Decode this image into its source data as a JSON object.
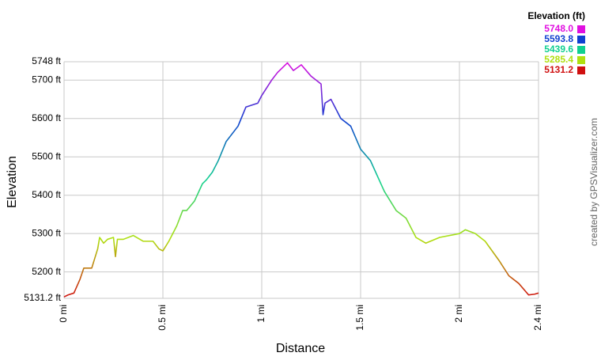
{
  "chart_data": {
    "type": "line",
    "x_label": "Distance",
    "y_label": "Elevation",
    "credit": "created by GPSVisualizer.com",
    "xlim": [
      0,
      2.4
    ],
    "xticks": [
      {
        "value": 0,
        "label": "0 mi"
      },
      {
        "value": 0.5,
        "label": "0.5 mi"
      },
      {
        "value": 1,
        "label": "1 mi"
      },
      {
        "value": 1.5,
        "label": "1.5 mi"
      },
      {
        "value": 2,
        "label": "2 mi"
      },
      {
        "value": 2.4,
        "label": "2.4 mi"
      }
    ],
    "ylim": [
      5131.2,
      5748
    ],
    "yticks": [
      {
        "value": 5131.2,
        "label": "5131.2 ft"
      },
      {
        "value": 5200,
        "label": "5200 ft"
      },
      {
        "value": 5300,
        "label": "5300 ft"
      },
      {
        "value": 5400,
        "label": "5400 ft"
      },
      {
        "value": 5500,
        "label": "5500 ft"
      },
      {
        "value": 5600,
        "label": "5600 ft"
      },
      {
        "value": 5700,
        "label": "5700 ft"
      },
      {
        "value": 5748,
        "label": "5748 ft"
      }
    ],
    "grid": true,
    "legend_position": "top-right",
    "color_scale": [
      {
        "value": 5748,
        "label": "5748.0",
        "color": "#e010e0"
      },
      {
        "value": 5593.8,
        "label": "5593.8",
        "color": "#1040d0"
      },
      {
        "value": 5439.6,
        "label": "5439.6",
        "color": "#10d090"
      },
      {
        "value": 5285.4,
        "label": "5285.4",
        "color": "#b0e010"
      },
      {
        "value": 5131.2,
        "label": "5131.2",
        "color": "#d01010"
      }
    ],
    "series": [
      {
        "name": "Elevation (ft)",
        "x": [
          0,
          0.02,
          0.05,
          0.08,
          0.1,
          0.14,
          0.17,
          0.18,
          0.2,
          0.22,
          0.25,
          0.26,
          0.27,
          0.3,
          0.35,
          0.4,
          0.45,
          0.48,
          0.5,
          0.53,
          0.57,
          0.6,
          0.62,
          0.66,
          0.7,
          0.72,
          0.75,
          0.78,
          0.82,
          0.88,
          0.92,
          0.98,
          1.0,
          1.05,
          1.08,
          1.13,
          1.16,
          1.2,
          1.25,
          1.3,
          1.31,
          1.32,
          1.35,
          1.4,
          1.45,
          1.5,
          1.55,
          1.62,
          1.68,
          1.73,
          1.78,
          1.83,
          1.9,
          2.0,
          2.03,
          2.08,
          2.13,
          2.2,
          2.25,
          2.3,
          2.35,
          2.38,
          2.4
        ],
        "values": [
          5135,
          5140,
          5145,
          5180,
          5210,
          5210,
          5260,
          5290,
          5275,
          5285,
          5290,
          5240,
          5285,
          5285,
          5295,
          5280,
          5280,
          5260,
          5255,
          5280,
          5320,
          5360,
          5360,
          5385,
          5430,
          5440,
          5460,
          5490,
          5540,
          5580,
          5630,
          5640,
          5660,
          5700,
          5720,
          5745,
          5725,
          5740,
          5710,
          5690,
          5610,
          5640,
          5650,
          5600,
          5580,
          5520,
          5490,
          5410,
          5360,
          5340,
          5290,
          5275,
          5290,
          5300,
          5310,
          5300,
          5280,
          5230,
          5190,
          5170,
          5140,
          5142,
          5145
        ]
      }
    ]
  }
}
